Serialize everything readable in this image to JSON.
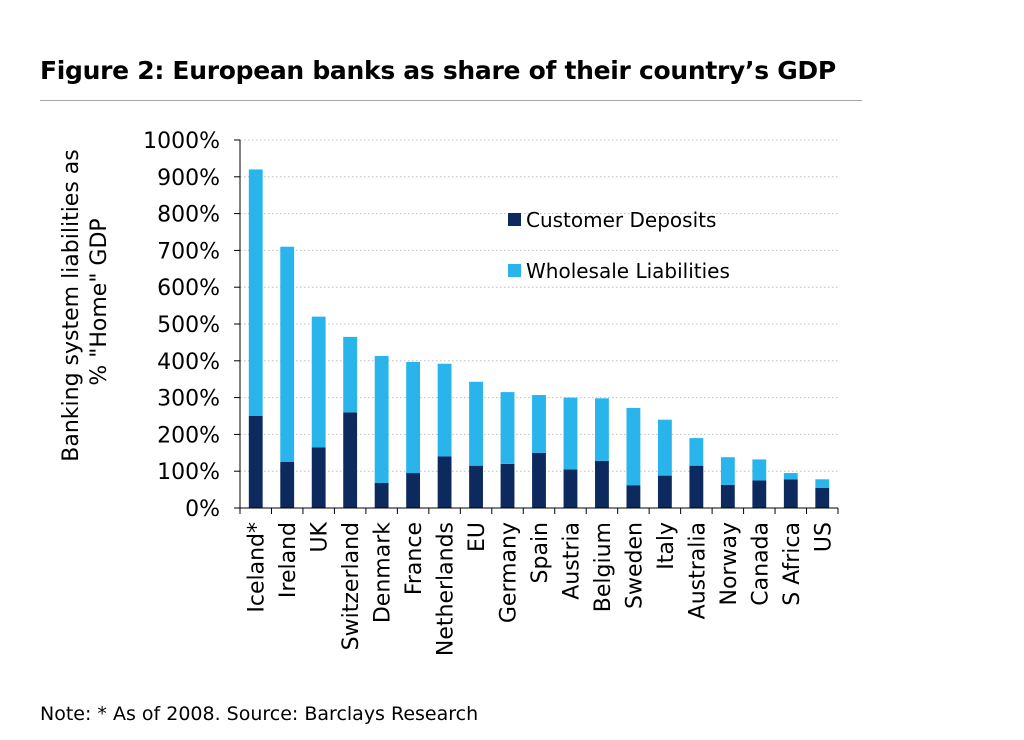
{
  "figure": {
    "title": "Figure 2: European banks as share of their country’s GDP",
    "note": "Note: * As of 2008. Source: Barclays Research"
  },
  "chart_data": {
    "type": "bar",
    "stacked": true,
    "ylabel_lines": [
      "Banking system liabilities as",
      "% \"Home\" GDP"
    ],
    "xlabel": "",
    "ylim": [
      0,
      1000
    ],
    "yticks": [
      0,
      100,
      200,
      300,
      400,
      500,
      600,
      700,
      800,
      900,
      1000
    ],
    "ytick_labels": [
      "0%",
      "100%",
      "200%",
      "300%",
      "400%",
      "500%",
      "600%",
      "700%",
      "800%",
      "900%",
      "1000%"
    ],
    "grid": true,
    "legend_position": "top-right",
    "categories": [
      "Iceland*",
      "Ireland",
      "UK",
      "Switzerland",
      "Denmark",
      "France",
      "Netherlands",
      "EU",
      "Germany",
      "Spain",
      "Austria",
      "Belgium",
      "Sweden",
      "Italy",
      "Australia",
      "Norway",
      "Canada",
      "S Africa",
      "US"
    ],
    "series": [
      {
        "name": "Customer Deposits",
        "color": "#0d2a5e",
        "values": [
          250,
          125,
          165,
          260,
          68,
          95,
          140,
          115,
          120,
          150,
          105,
          128,
          62,
          88,
          115,
          63,
          75,
          78,
          55
        ]
      },
      {
        "name": "Wholesale Liabilities",
        "color": "#29b5ec",
        "values": [
          670,
          585,
          355,
          205,
          345,
          302,
          252,
          228,
          195,
          157,
          195,
          170,
          210,
          152,
          75,
          75,
          57,
          17,
          23
        ]
      }
    ]
  }
}
